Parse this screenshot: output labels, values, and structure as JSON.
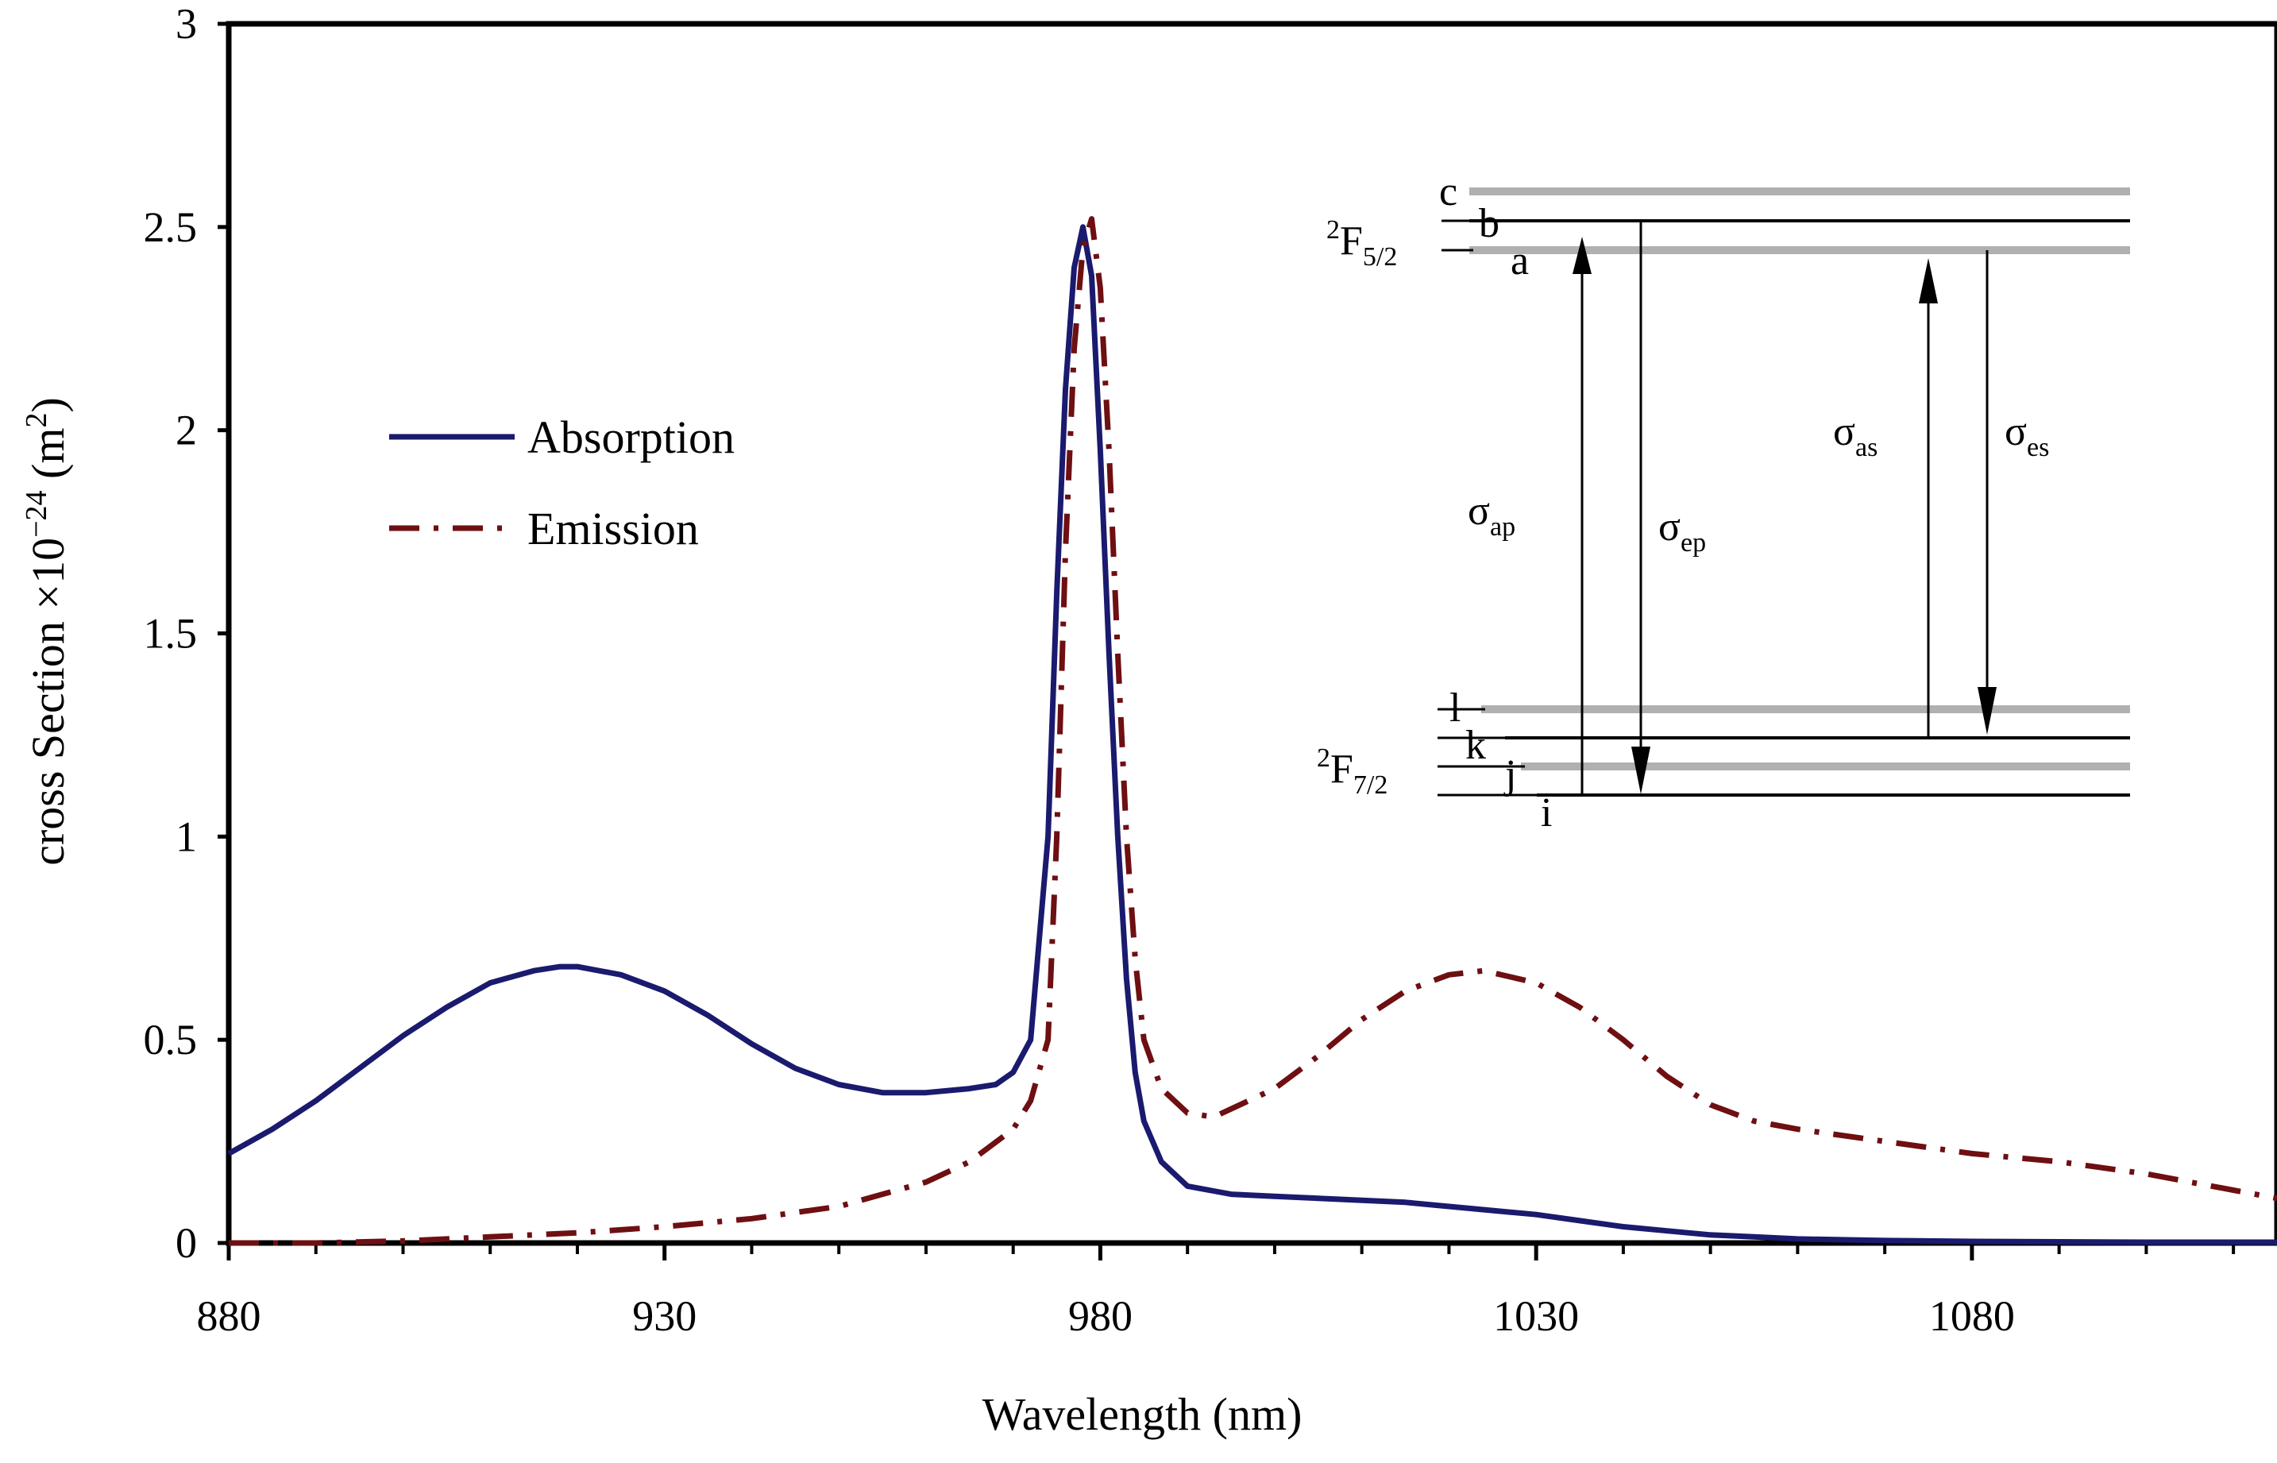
{
  "chart_data": {
    "type": "line",
    "title": "",
    "xlabel": "Wavelength (nm)",
    "ylabel_main": "cross Section ×10",
    "ylabel_exp": "−24",
    "ylabel_unit": " (m",
    "ylabel_unit_sup": "2",
    "ylabel_close": ")",
    "xlim": [
      880,
      1115
    ],
    "ylim": [
      0,
      3
    ],
    "x_ticks": [
      880,
      930,
      980,
      1030,
      1080
    ],
    "x_tick_labels": [
      "880",
      "930",
      "980",
      "1030",
      "1080"
    ],
    "x_minor_step": 10,
    "y_ticks": [
      0,
      0.5,
      1,
      1.5,
      2,
      2.5,
      3
    ],
    "y_tick_labels": [
      "0",
      "0.5",
      "1",
      "1.5",
      "2",
      "2.5",
      "3"
    ],
    "legend": {
      "position": "upper-left",
      "entries": [
        "Absorption",
        "Emission"
      ]
    },
    "series": [
      {
        "name": "Absorption",
        "color": "#1a1a6e",
        "style": "solid",
        "x": [
          880,
          885,
          890,
          895,
          900,
          905,
          910,
          915,
          918,
          920,
          925,
          930,
          935,
          940,
          945,
          950,
          955,
          960,
          965,
          968,
          970,
          972,
          974,
          975,
          976,
          977,
          978,
          979,
          980,
          981,
          982,
          983,
          984,
          985,
          987,
          990,
          995,
          1000,
          1005,
          1010,
          1015,
          1020,
          1025,
          1030,
          1035,
          1040,
          1045,
          1050,
          1055,
          1060,
          1065,
          1070,
          1080,
          1090,
          1100,
          1110,
          1115
        ],
        "y": [
          0.22,
          0.28,
          0.35,
          0.43,
          0.51,
          0.58,
          0.64,
          0.67,
          0.68,
          0.68,
          0.66,
          0.62,
          0.56,
          0.49,
          0.43,
          0.39,
          0.37,
          0.37,
          0.38,
          0.39,
          0.42,
          0.5,
          1.0,
          1.6,
          2.1,
          2.4,
          2.5,
          2.38,
          1.95,
          1.45,
          1.0,
          0.65,
          0.42,
          0.3,
          0.2,
          0.14,
          0.12,
          0.115,
          0.11,
          0.105,
          0.1,
          0.09,
          0.08,
          0.07,
          0.055,
          0.04,
          0.03,
          0.02,
          0.015,
          0.01,
          0.008,
          0.006,
          0.004,
          0.003,
          0.002,
          0.002,
          0.002
        ]
      },
      {
        "name": "Emission",
        "color": "#6e0f12",
        "style": "dash-dot",
        "x": [
          880,
          890,
          900,
          910,
          920,
          930,
          940,
          950,
          955,
          960,
          965,
          970,
          972,
          974,
          975,
          976,
          977,
          978,
          979,
          980,
          981,
          982,
          983,
          984,
          985,
          987,
          990,
          993,
          995,
          1000,
          1005,
          1010,
          1015,
          1020,
          1024,
          1030,
          1035,
          1040,
          1045,
          1050,
          1055,
          1060,
          1070,
          1080,
          1090,
          1100,
          1110,
          1115
        ],
        "y": [
          0.0,
          0.0,
          0.005,
          0.015,
          0.025,
          0.04,
          0.06,
          0.09,
          0.12,
          0.15,
          0.2,
          0.28,
          0.35,
          0.5,
          1.0,
          1.7,
          2.2,
          2.45,
          2.52,
          2.35,
          1.95,
          1.45,
          1.0,
          0.7,
          0.5,
          0.38,
          0.32,
          0.31,
          0.33,
          0.38,
          0.46,
          0.55,
          0.62,
          0.66,
          0.67,
          0.64,
          0.58,
          0.5,
          0.41,
          0.34,
          0.3,
          0.28,
          0.25,
          0.22,
          0.2,
          0.17,
          0.13,
          0.11
        ]
      }
    ],
    "annotations": [
      "Energy level diagram inset: upper manifold 2F5/2 with levels c, b, a; lower manifold 2F7/2 with levels l, k, j, i; transitions σap, σep, σas, σes"
    ]
  },
  "inset": {
    "upper_manifold": {
      "base": "F",
      "pre": "2",
      "sub": "5/2"
    },
    "lower_manifold": {
      "base": "F",
      "pre": "2",
      "sub": "7/2"
    },
    "upper_levels": [
      "c",
      "b",
      "a"
    ],
    "lower_levels": [
      "l",
      "k",
      "j",
      "i"
    ],
    "transitions": [
      {
        "symbol": "σ",
        "sub": "ap"
      },
      {
        "symbol": "σ",
        "sub": "ep"
      },
      {
        "symbol": "σ",
        "sub": "as"
      },
      {
        "symbol": "σ",
        "sub": "es"
      }
    ],
    "colors": {
      "level_gray": "#b0b0b0",
      "level_black": "#000000",
      "arrow": "#000000"
    }
  }
}
